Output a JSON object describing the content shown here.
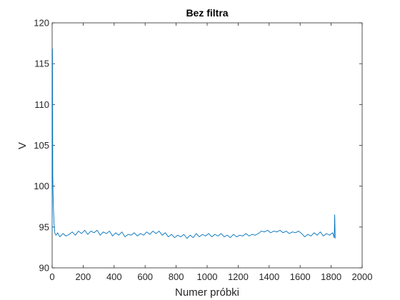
{
  "chart_data": {
    "type": "line",
    "title": "Bez filtra",
    "xlabel": "Numer próbki",
    "ylabel": "V",
    "xlim": [
      0,
      2000
    ],
    "ylim": [
      90,
      120
    ],
    "xticks": [
      0,
      200,
      400,
      600,
      800,
      1000,
      1200,
      1400,
      1600,
      1800,
      2000
    ],
    "yticks": [
      90,
      95,
      100,
      105,
      110,
      115,
      120
    ],
    "xtick_labels": [
      "0",
      "200",
      "400",
      "600",
      "800",
      "1000",
      "1200",
      "1400",
      "1600",
      "1800",
      "2000"
    ],
    "ytick_labels": [
      "90",
      "95",
      "100",
      "105",
      "110",
      "115",
      "120"
    ],
    "grid": false,
    "series": [
      {
        "color": "#0072BD",
        "x": [
          0,
          2,
          4,
          6,
          8,
          12,
          18,
          25,
          35,
          50,
          70,
          90,
          110,
          130,
          150,
          170,
          190,
          210,
          230,
          250,
          270,
          290,
          310,
          330,
          350,
          370,
          390,
          410,
          430,
          450,
          470,
          490,
          510,
          530,
          550,
          570,
          590,
          610,
          630,
          650,
          670,
          690,
          710,
          730,
          750,
          770,
          790,
          810,
          830,
          850,
          870,
          890,
          910,
          930,
          950,
          970,
          990,
          1010,
          1030,
          1050,
          1070,
          1090,
          1110,
          1130,
          1150,
          1170,
          1190,
          1210,
          1230,
          1250,
          1270,
          1290,
          1310,
          1330,
          1350,
          1370,
          1390,
          1410,
          1430,
          1450,
          1470,
          1490,
          1510,
          1530,
          1550,
          1570,
          1590,
          1610,
          1630,
          1650,
          1670,
          1690,
          1710,
          1730,
          1750,
          1770,
          1790,
          1810,
          1820,
          1823,
          1826
        ],
        "y": [
          94.5,
          116.8,
          101.3,
          99.0,
          97.5,
          95.5,
          94.2,
          94.0,
          94.3,
          93.8,
          94.2,
          93.9,
          94.1,
          94.4,
          94.0,
          94.5,
          94.2,
          94.6,
          94.1,
          94.5,
          94.3,
          94.6,
          94.0,
          94.4,
          94.2,
          94.5,
          93.9,
          94.3,
          94.0,
          94.4,
          93.8,
          94.1,
          94.0,
          94.3,
          93.9,
          94.2,
          94.0,
          94.4,
          94.1,
          94.5,
          94.2,
          94.5,
          94.0,
          94.3,
          93.8,
          94.1,
          93.7,
          94.0,
          93.8,
          94.1,
          93.6,
          94.0,
          93.7,
          94.2,
          93.8,
          94.1,
          93.9,
          94.2,
          93.8,
          94.1,
          93.9,
          94.2,
          93.8,
          94.0,
          93.7,
          94.1,
          93.8,
          94.0,
          93.9,
          94.2,
          93.9,
          94.1,
          94.0,
          94.2,
          94.5,
          94.4,
          94.6,
          94.3,
          94.5,
          94.4,
          94.6,
          94.3,
          94.5,
          94.2,
          94.4,
          94.3,
          94.5,
          94.2,
          93.8,
          94.1,
          93.9,
          94.3,
          94.0,
          94.4,
          93.9,
          94.2,
          94.0,
          94.3,
          93.7,
          96.5,
          93.6
        ]
      }
    ]
  }
}
